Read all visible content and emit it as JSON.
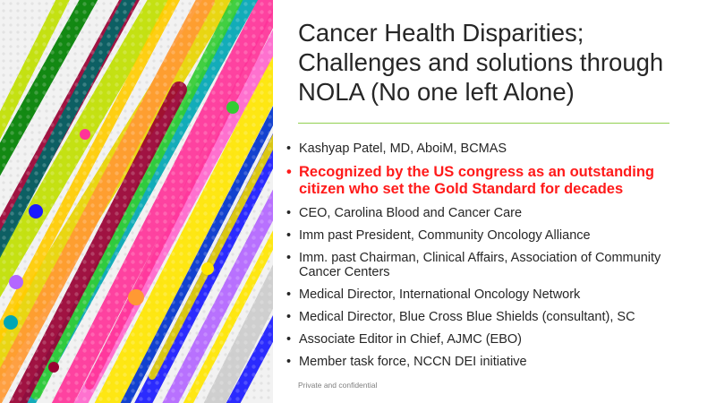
{
  "slide": {
    "title_lines": [
      "Cancer Health Disparities;",
      "Challenges and solutions through",
      "NOLA (No one left Alone)"
    ],
    "bullet_glyph": "•",
    "bullets": [
      {
        "text": "Kashyap Patel, MD, AboiM, BCMAS",
        "emphasis": false
      },
      {
        "text": "Recognized by the US congress as an outstanding citizen who set the Gold Standard for decades",
        "emphasis": true
      },
      {
        "text": "CEO, Carolina Blood and Cancer Care",
        "emphasis": false
      },
      {
        "text": "Imm past President, Community Oncology Alliance",
        "emphasis": false
      },
      {
        "text": "Imm. past Chairman, Clinical Affairs, Association of Community Cancer Centers",
        "emphasis": false
      },
      {
        "text": "Medical Director, International Oncology Network",
        "emphasis": false
      },
      {
        "text": "Medical Director, Blue Cross Blue Shields (consultant), SC",
        "emphasis": false
      },
      {
        "text": "Associate Editor in Chief, AJMC (EBO)",
        "emphasis": false
      },
      {
        "text": "Member task force, NCCN DEI initiative",
        "emphasis": false
      }
    ],
    "footer": "Private and confidential"
  },
  "colors": {
    "title_text": "#262626",
    "body_text": "#262626",
    "emphasis_text": "#ff1a1a",
    "accent_rule": "#92d050",
    "footer_text": "#7f7f7f",
    "art_palette": [
      "#ffe600",
      "#ff3399",
      "#1a1aff",
      "#e8d400",
      "#00a6b4",
      "#c0e000",
      "#990033",
      "#ff66cc",
      "#008000",
      "#b366ff",
      "#ff9933",
      "#cccccc",
      "#33cc33",
      "#0033cc",
      "#ffcc00",
      "#006666"
    ]
  }
}
